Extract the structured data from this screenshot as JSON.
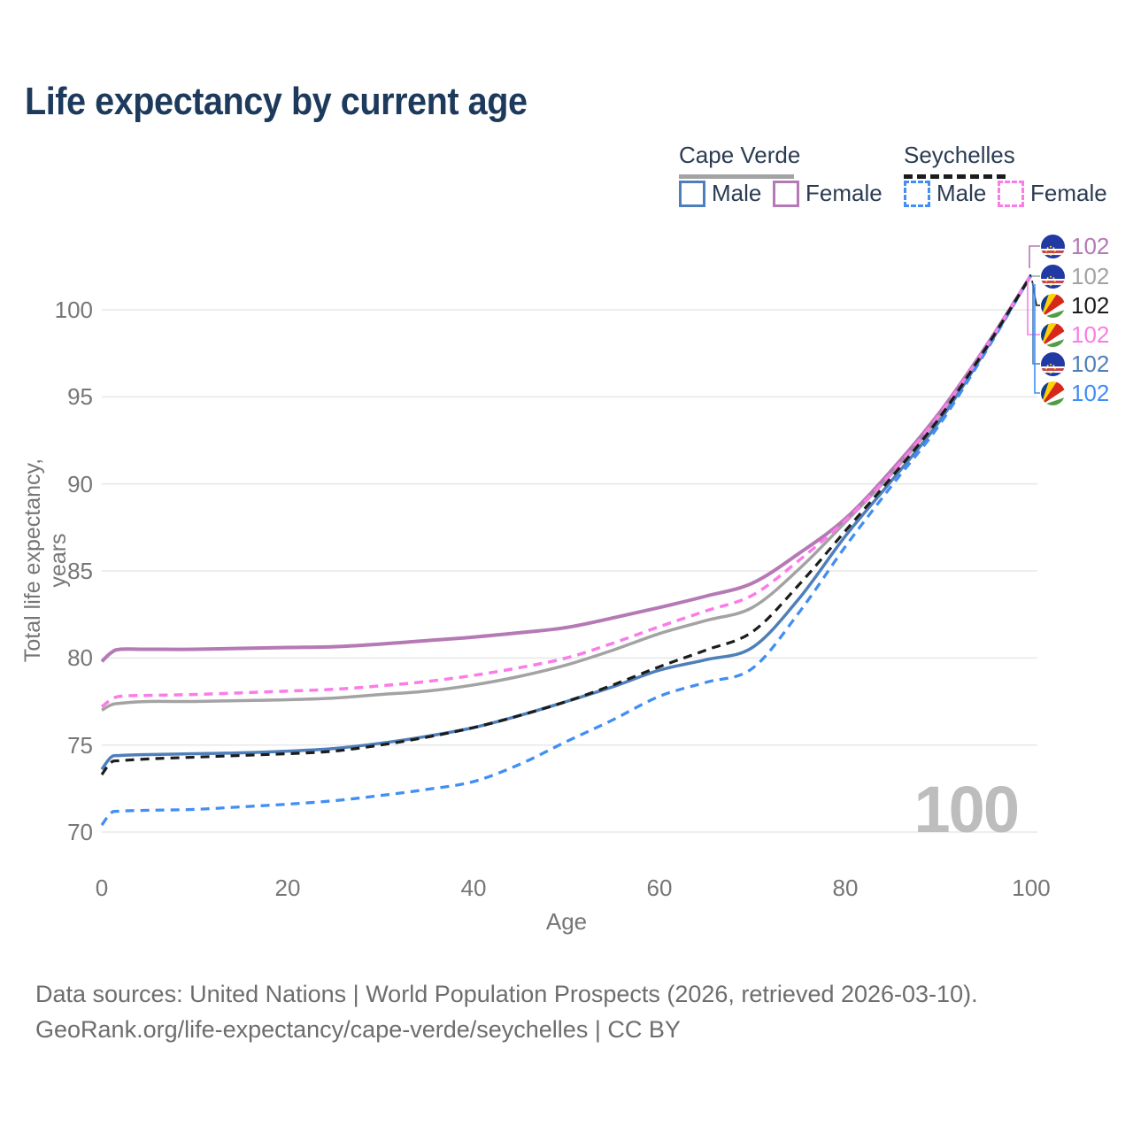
{
  "title": "Life expectancy by current age",
  "legend": {
    "groups": [
      {
        "label": "Cape Verde",
        "line_style": "solid",
        "line_color": "#a3a3a3"
      },
      {
        "label": "Seychelles",
        "line_style": "dashed",
        "line_color": "#1c1c1c"
      }
    ],
    "items": [
      {
        "label": "Male",
        "color": "#4f7fba",
        "style": "solid"
      },
      {
        "label": "Female",
        "color": "#b579b5",
        "style": "solid"
      },
      {
        "label": "Male",
        "color": "#418ef4",
        "style": "dashed"
      },
      {
        "label": "Female",
        "color": "#fb7ce8",
        "style": "dashed"
      }
    ]
  },
  "watermark": "100",
  "end_labels": [
    {
      "value": "102",
      "flag": "cape-verde",
      "color": "#b579b5"
    },
    {
      "value": "102",
      "flag": "cape-verde",
      "color": "#a3a3a3"
    },
    {
      "value": "102",
      "flag": "seychelles",
      "color": "#1c1c1c"
    },
    {
      "value": "102",
      "flag": "seychelles",
      "color": "#fb7ce8"
    },
    {
      "value": "102",
      "flag": "cape-verde",
      "color": "#4f7fba"
    },
    {
      "value": "102",
      "flag": "seychelles",
      "color": "#418ef4"
    }
  ],
  "chart_data": {
    "type": "line",
    "title": "Life expectancy by current age",
    "xlabel": "Age",
    "ylabel": "Total life expectancy, years",
    "x_ticks": [
      0,
      20,
      40,
      60,
      80,
      100
    ],
    "y_ticks": [
      70,
      75,
      80,
      85,
      90,
      95,
      100
    ],
    "xlim": [
      0,
      100
    ],
    "ylim": [
      69.5,
      102.5
    ],
    "grid": true,
    "x": [
      0,
      1,
      2,
      5,
      10,
      15,
      20,
      25,
      30,
      35,
      40,
      45,
      50,
      55,
      60,
      65,
      70,
      75,
      80,
      85,
      90,
      95,
      100
    ],
    "series": [
      {
        "name": "Cape Verde Both sexes",
        "color": "#a3a3a3",
        "dashed": false,
        "width": 3.5,
        "values": [
          77.0,
          77.3,
          77.4,
          77.5,
          77.5,
          77.55,
          77.6,
          77.7,
          77.9,
          78.1,
          78.45,
          78.95,
          79.6,
          80.45,
          81.4,
          82.15,
          82.9,
          85.1,
          87.8,
          90.6,
          93.8,
          97.7,
          102
        ]
      },
      {
        "name": "Cape Verde Female",
        "color": "#b579b5",
        "dashed": false,
        "width": 4,
        "values": [
          79.8,
          80.3,
          80.5,
          80.5,
          80.5,
          80.55,
          80.6,
          80.65,
          80.8,
          81.0,
          81.2,
          81.45,
          81.75,
          82.3,
          82.9,
          83.55,
          84.3,
          86.0,
          88.0,
          90.8,
          94.0,
          97.8,
          102
        ]
      },
      {
        "name": "Cape Verde Male",
        "color": "#4f7fba",
        "dashed": false,
        "width": 3.5,
        "values": [
          73.6,
          74.3,
          74.4,
          74.45,
          74.5,
          74.55,
          74.65,
          74.8,
          75.1,
          75.5,
          76.0,
          76.7,
          77.5,
          78.35,
          79.3,
          79.9,
          80.6,
          83.4,
          87.0,
          90.2,
          93.5,
          97.6,
          102
        ]
      },
      {
        "name": "Seychelles Male",
        "color": "#418ef4",
        "dashed": true,
        "width": 3.3,
        "values": [
          70.4,
          71.1,
          71.2,
          71.25,
          71.3,
          71.45,
          71.6,
          71.8,
          72.1,
          72.45,
          72.9,
          73.9,
          75.2,
          76.45,
          77.8,
          78.6,
          79.4,
          82.6,
          86.4,
          89.9,
          93.3,
          97.5,
          102
        ]
      },
      {
        "name": "Seychelles Female",
        "color": "#fb7ce8",
        "dashed": true,
        "width": 3.5,
        "values": [
          77.2,
          77.6,
          77.8,
          77.85,
          77.9,
          78.0,
          78.1,
          78.2,
          78.4,
          78.65,
          79.0,
          79.45,
          80.0,
          80.85,
          81.8,
          82.7,
          83.6,
          85.6,
          87.9,
          90.65,
          93.9,
          97.75,
          102
        ]
      },
      {
        "name": "Seychelles Both sexes",
        "color": "#1c1c1c",
        "dashed": true,
        "width": 3.2,
        "values": [
          73.3,
          74.0,
          74.1,
          74.2,
          74.3,
          74.4,
          74.5,
          74.65,
          75.0,
          75.45,
          76.0,
          76.7,
          77.5,
          78.45,
          79.5,
          80.45,
          81.5,
          84.2,
          87.3,
          90.4,
          93.7,
          97.7,
          102
        ]
      }
    ]
  },
  "footer": {
    "line1": "Data sources: United Nations | World Population Prospects (2026, retrieved 2026-03-10).",
    "line2": "GeoRank.org/life-expectancy/cape-verde/seychelles | CC BY"
  }
}
